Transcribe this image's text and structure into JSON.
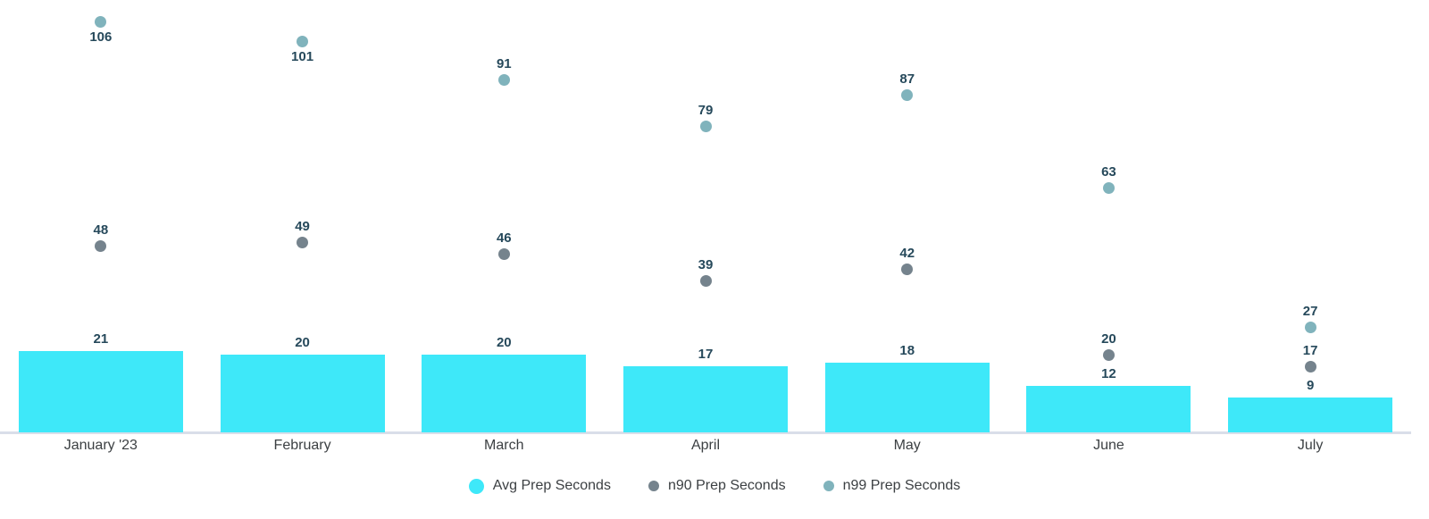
{
  "chart_data": {
    "type": "bar",
    "subtype": "bar-with-point-overlays",
    "categories": [
      "January '23",
      "February",
      "March",
      "April",
      "May",
      "June",
      "July"
    ],
    "series": [
      {
        "name": "Avg Prep Seconds",
        "mark": "bar",
        "color": "#3ee8f9",
        "values": [
          21,
          20,
          20,
          17,
          18,
          12,
          9
        ]
      },
      {
        "name": "n90 Prep Seconds",
        "mark": "point",
        "color": "#75838d",
        "values": [
          48,
          49,
          46,
          39,
          42,
          20,
          17
        ]
      },
      {
        "name": "n99 Prep Seconds",
        "mark": "point",
        "color": "#80b3bc",
        "values": [
          106,
          101,
          91,
          79,
          87,
          63,
          27
        ]
      }
    ],
    "title": "",
    "xlabel": "",
    "ylabel": "",
    "ylim": [
      0,
      112
    ],
    "grid": "off",
    "y_axis_ticks": "hidden",
    "data_labels": "on",
    "legend_position": "bottom-center",
    "colors": {
      "value_label": "#26495b",
      "axis_label": "#3c4043",
      "axis_line": "#d9dee9",
      "background": "#ffffff"
    }
  }
}
